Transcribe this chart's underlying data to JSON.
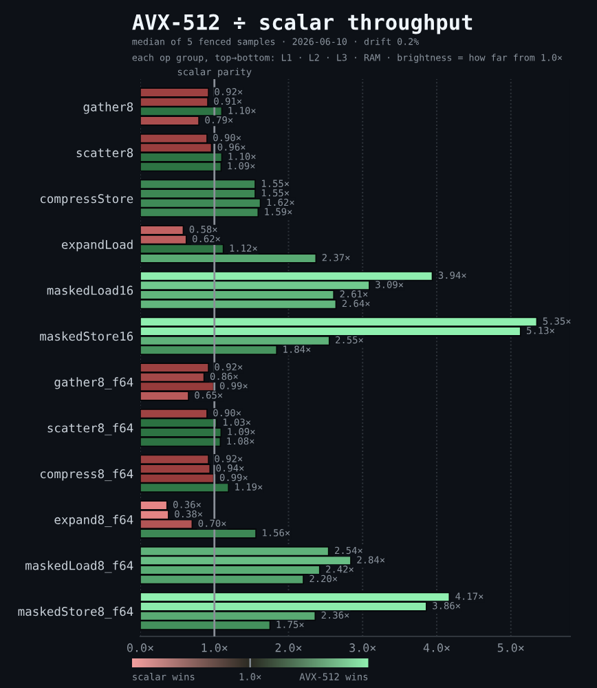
{
  "chart_data": {
    "type": "bar",
    "orientation": "horizontal",
    "title": "AVX-512 ÷ scalar throughput",
    "subtitle": "median of 5 fenced samples · 2026-06-10 · drift 0.2%\neach op group, top→bottom: L1 · L2 · L3 · RAM · brightness = how far from 1.0×",
    "categories": [
      "gather8",
      "scatter8",
      "compressStore",
      "expandLoad",
      "maskedLoad16",
      "maskedStore16",
      "gather8_f64",
      "scatter8_f64",
      "compress8_f64",
      "expand8_f64",
      "maskedLoad8_f64",
      "maskedStore8_f64"
    ],
    "series": [
      {
        "values": [
          0.92,
          0.9,
          1.55,
          0.58,
          3.94,
          5.35,
          0.92,
          0.9,
          0.92,
          0.36,
          2.54,
          4.17
        ],
        "colors": [
          "#9d4141",
          "#9f4343",
          "#3d8754",
          "#c06262",
          "#8eedae",
          "#90f0b0",
          "#9d4141",
          "#9f4343",
          "#9d4141",
          "#e68686",
          "#5fb27a",
          "#90f0b0"
        ],
        "value_labels": [
          "0.92×",
          "0.90×",
          "1.55×",
          "0.58×",
          "3.94×",
          "5.35×",
          "0.92×",
          "0.90×",
          "0.92×",
          "0.36×",
          "2.54×",
          "4.17×"
        ]
      },
      {
        "values": [
          0.91,
          0.96,
          1.55,
          0.62,
          3.09,
          5.13,
          0.86,
          1.03,
          0.94,
          0.38,
          2.84,
          3.86
        ],
        "colors": [
          "#9e4242",
          "#993e3e",
          "#3d8754",
          "#bb5e5e",
          "#71c98e",
          "#90f0b0",
          "#a44848",
          "#2b7141",
          "#9b3f3f",
          "#e38484",
          "#69be85",
          "#8beaab"
        ],
        "value_labels": [
          "0.91×",
          "0.96×",
          "1.55×",
          "0.62×",
          "3.09×",
          "5.13×",
          "0.86×",
          "1.03×",
          "0.94×",
          "0.38×",
          "2.84×",
          "3.86×"
        ]
      },
      {
        "values": [
          1.1,
          1.1,
          1.62,
          1.12,
          2.61,
          2.55,
          0.99,
          1.09,
          0.99,
          0.7,
          2.42,
          2.36
        ],
        "colors": [
          "#2d7444",
          "#2d7444",
          "#3f8a57",
          "#2e7544",
          "#61b57c",
          "#5fb27a",
          "#963b3b",
          "#2d7343",
          "#963b3b",
          "#b25555",
          "#5aad75",
          "#59aa73"
        ],
        "value_labels": [
          "1.10×",
          "1.10×",
          "1.62×",
          "1.12×",
          "2.61×",
          "2.55×",
          "0.99×",
          "1.09×",
          "0.99×",
          "0.70×",
          "2.42×",
          "2.36×"
        ]
      },
      {
        "values": [
          0.79,
          1.09,
          1.59,
          2.37,
          2.64,
          1.84,
          0.65,
          1.08,
          1.19,
          1.56,
          2.2,
          1.75
        ],
        "colors": [
          "#ab4e4e",
          "#2d7343",
          "#3e8956",
          "#59aa73",
          "#62b67d",
          "#47945f",
          "#b85a5a",
          "#2d7343",
          "#307847",
          "#3d8855",
          "#53a36d",
          "#44905c"
        ],
        "value_labels": [
          "0.79×",
          "1.09×",
          "1.59×",
          "2.37×",
          "2.64×",
          "1.84×",
          "0.65×",
          "1.08×",
          "1.19×",
          "1.56×",
          "2.20×",
          "1.75×"
        ]
      }
    ],
    "xlim": [
      0,
      5.8
    ],
    "xticks": [
      {
        "value": 0,
        "label": "0.0×"
      },
      {
        "value": 1,
        "label": "1.0×"
      },
      {
        "value": 2,
        "label": "2.0×"
      },
      {
        "value": 3,
        "label": "3.0×"
      },
      {
        "value": 4,
        "label": "4.0×"
      },
      {
        "value": 5,
        "label": "5.0×"
      }
    ],
    "grid": "x",
    "ref_lines": [
      {
        "axis": "x",
        "value": 1,
        "label": "scalar parity",
        "color": "#8a8f98"
      }
    ],
    "annotations": [
      "scalar wins",
      "1.0×",
      "AVX-512 wins"
    ]
  }
}
